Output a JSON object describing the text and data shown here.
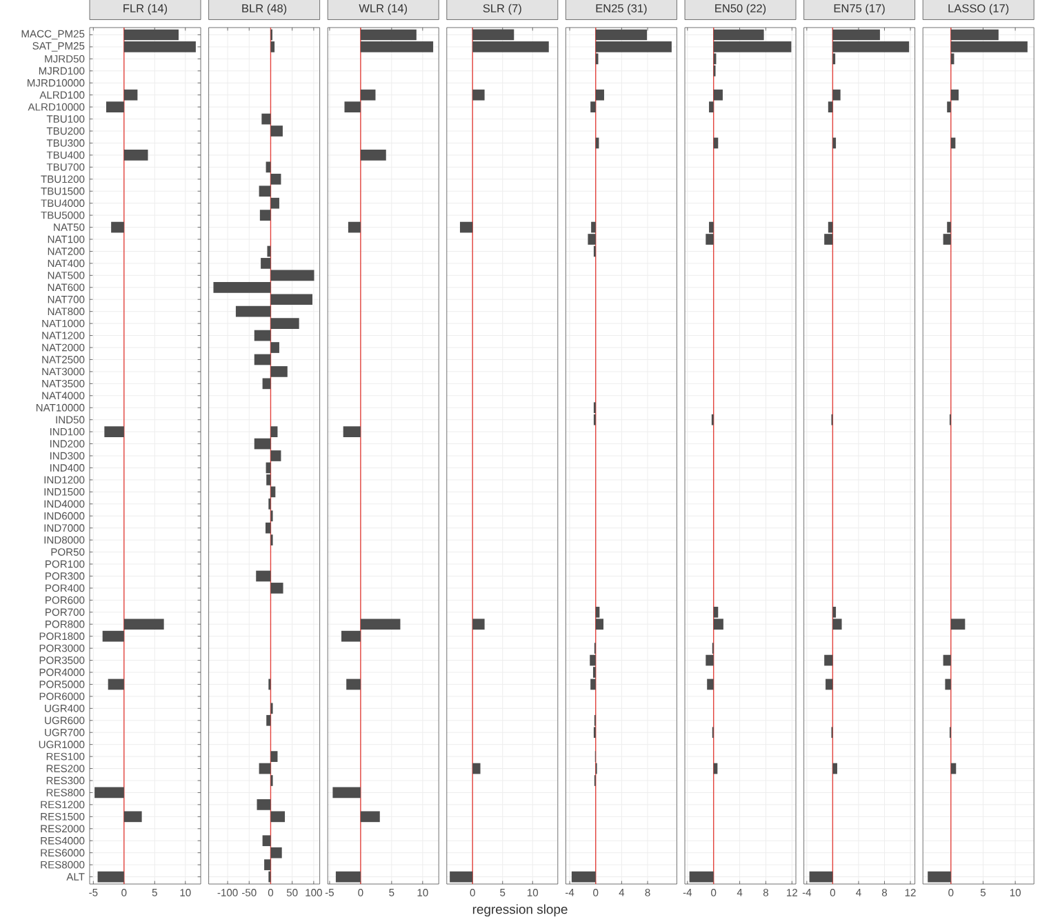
{
  "chart_data": [
    {
      "type": "bar",
      "orientation": "horizontal",
      "title": "FLR (14)",
      "color": "#4d4d4d",
      "grid": true,
      "xlim": [
        -5.6,
        12.5
      ],
      "xticks": [
        -5,
        0,
        5,
        10
      ],
      "ref_lines": [
        {
          "axis": "x",
          "value": 0,
          "color": "#e3423c"
        }
      ],
      "categories": [
        "MACC_PM25",
        "SAT_PM25",
        "MJRD50",
        "MJRD100",
        "MJRD10000",
        "ALRD100",
        "ALRD10000",
        "TBU100",
        "TBU200",
        "TBU300",
        "TBU400",
        "TBU700",
        "TBU1200",
        "TBU1500",
        "TBU4000",
        "TBU5000",
        "NAT50",
        "NAT100",
        "NAT200",
        "NAT400",
        "NAT500",
        "NAT600",
        "NAT700",
        "NAT800",
        "NAT1000",
        "NAT1200",
        "NAT2000",
        "NAT2500",
        "NAT3000",
        "NAT3500",
        "NAT4000",
        "NAT10000",
        "IND50",
        "IND100",
        "IND200",
        "IND300",
        "IND400",
        "IND1200",
        "IND1500",
        "IND4000",
        "IND6000",
        "IND7000",
        "IND8000",
        "POR50",
        "POR100",
        "POR300",
        "POR400",
        "POR600",
        "POR700",
        "POR800",
        "POR1800",
        "POR3000",
        "POR3500",
        "POR4000",
        "POR5000",
        "POR6000",
        "UGR400",
        "UGR600",
        "UGR700",
        "UGR1000",
        "RES100",
        "RES200",
        "RES300",
        "RES800",
        "RES1200",
        "RES1500",
        "RES2000",
        "RES4000",
        "RES6000",
        "RES8000",
        "ALT"
      ],
      "values": [
        8.9,
        11.7,
        null,
        null,
        null,
        2.2,
        -2.9,
        null,
        null,
        null,
        3.9,
        null,
        null,
        null,
        null,
        null,
        -2.1,
        null,
        null,
        null,
        null,
        null,
        null,
        null,
        null,
        null,
        null,
        null,
        null,
        null,
        null,
        null,
        null,
        -3.2,
        null,
        null,
        null,
        null,
        null,
        null,
        null,
        null,
        null,
        null,
        null,
        null,
        null,
        null,
        null,
        6.5,
        -3.5,
        null,
        null,
        null,
        -2.6,
        null,
        null,
        null,
        null,
        null,
        null,
        null,
        null,
        -4.8,
        null,
        2.9,
        null,
        null,
        null,
        null,
        -4.3
      ]
    },
    {
      "type": "bar",
      "orientation": "horizontal",
      "title": "BLR (48)",
      "color": "#4d4d4d",
      "grid": true,
      "tick_labels": "x",
      "xlim": [
        -144,
        114
      ],
      "xticks": [
        -100,
        -50,
        0,
        50,
        100
      ],
      "ref_lines": [
        {
          "axis": "x",
          "value": 0,
          "color": "#e3423c"
        }
      ],
      "values": [
        4,
        9,
        null,
        null,
        null,
        null,
        null,
        -21,
        28,
        null,
        null,
        -11,
        24,
        -27,
        20,
        -25,
        null,
        null,
        -8,
        -23,
        101,
        -133,
        97,
        -81,
        66,
        -38,
        20,
        -38,
        39,
        -19,
        null,
        null,
        null,
        16,
        -38,
        24,
        -11,
        -10,
        11,
        -5,
        5,
        -12,
        5,
        null,
        null,
        -34,
        29,
        null,
        null,
        null,
        null,
        null,
        null,
        null,
        -5,
        null,
        5,
        -10,
        null,
        null,
        16,
        -27,
        5,
        null,
        -32,
        33,
        null,
        -19,
        26,
        -15,
        -5
      ]
    },
    {
      "type": "bar",
      "orientation": "horizontal",
      "title": "WLR (14)",
      "color": "#4d4d4d",
      "grid": true,
      "tick_labels": "x",
      "xlim": [
        -5.3,
        12.6
      ],
      "xticks": [
        -5,
        0,
        5,
        10
      ],
      "ref_lines": [
        {
          "axis": "x",
          "value": 0,
          "color": "#e3423c"
        }
      ],
      "values": [
        9.0,
        11.7,
        null,
        null,
        null,
        2.4,
        -2.6,
        null,
        null,
        null,
        4.1,
        null,
        null,
        null,
        null,
        null,
        -2.0,
        null,
        null,
        null,
        null,
        null,
        null,
        null,
        null,
        null,
        null,
        null,
        null,
        null,
        null,
        null,
        null,
        -2.8,
        null,
        null,
        null,
        null,
        null,
        null,
        null,
        null,
        null,
        null,
        null,
        null,
        null,
        null,
        null,
        6.4,
        -3.1,
        null,
        null,
        null,
        -2.3,
        null,
        null,
        null,
        null,
        null,
        null,
        null,
        null,
        -4.5,
        null,
        3.1,
        null,
        null,
        null,
        null,
        -4.0
      ]
    },
    {
      "type": "bar",
      "orientation": "horizontal",
      "title": "SLR (7)",
      "xlabel": "regression slope",
      "color": "#4d4d4d",
      "grid": true,
      "tick_labels": "x",
      "xlim": [
        -4.3,
        14.2
      ],
      "xticks": [
        0,
        5,
        10
      ],
      "ref_lines": [
        {
          "axis": "x",
          "value": 0,
          "color": "#e3423c"
        }
      ],
      "values": [
        6.9,
        12.7,
        null,
        null,
        null,
        2.0,
        null,
        null,
        null,
        null,
        null,
        null,
        null,
        null,
        null,
        null,
        -2.1,
        null,
        null,
        null,
        null,
        null,
        null,
        null,
        null,
        null,
        null,
        null,
        null,
        null,
        null,
        null,
        null,
        null,
        null,
        null,
        null,
        null,
        null,
        null,
        null,
        null,
        null,
        null,
        null,
        null,
        null,
        null,
        null,
        2.0,
        null,
        null,
        null,
        null,
        null,
        null,
        null,
        null,
        null,
        null,
        null,
        1.3,
        null,
        null,
        null,
        null,
        null,
        null,
        null,
        null,
        -3.8
      ]
    },
    {
      "type": "bar",
      "orientation": "horizontal",
      "title": "EN25 (31)",
      "color": "#4d4d4d",
      "grid": true,
      "tick_labels": "x",
      "xlim": [
        -4.6,
        12.5
      ],
      "xticks": [
        -4,
        0,
        4,
        8
      ],
      "ref_lines": [
        {
          "axis": "x",
          "value": 0,
          "color": "#e3423c"
        }
      ],
      "values": [
        7.9,
        11.7,
        0.4,
        null,
        null,
        1.3,
        -0.8,
        null,
        null,
        0.5,
        null,
        null,
        null,
        null,
        null,
        null,
        -0.7,
        -1.2,
        -0.3,
        null,
        null,
        null,
        null,
        null,
        null,
        null,
        null,
        null,
        null,
        null,
        null,
        -0.3,
        -0.3,
        null,
        null,
        null,
        null,
        null,
        null,
        null,
        null,
        null,
        null,
        null,
        null,
        null,
        null,
        null,
        0.6,
        1.2,
        null,
        -0.2,
        -0.9,
        -0.4,
        -0.8,
        null,
        null,
        -0.2,
        -0.3,
        null,
        -0.1,
        0.2,
        -0.2,
        null,
        null,
        null,
        null,
        null,
        null,
        null,
        -3.7
      ]
    },
    {
      "type": "bar",
      "orientation": "horizontal",
      "title": "EN50 (22)",
      "color": "#4d4d4d",
      "grid": true,
      "tick_labels": "x",
      "xlim": [
        -4.4,
        12.6
      ],
      "xticks": [
        -4,
        0,
        4,
        8,
        12
      ],
      "ref_lines": [
        {
          "axis": "x",
          "value": 0,
          "color": "#e3423c"
        }
      ],
      "values": [
        7.7,
        11.9,
        0.4,
        0.3,
        null,
        1.4,
        -0.7,
        null,
        null,
        0.7,
        null,
        null,
        null,
        null,
        null,
        null,
        -0.7,
        -1.2,
        null,
        null,
        null,
        null,
        null,
        null,
        null,
        null,
        null,
        null,
        null,
        null,
        null,
        null,
        -0.3,
        null,
        null,
        null,
        null,
        null,
        null,
        null,
        null,
        null,
        null,
        null,
        null,
        null,
        null,
        null,
        0.7,
        1.5,
        null,
        -0.2,
        -1.2,
        null,
        -1.0,
        null,
        null,
        null,
        -0.2,
        null,
        null,
        0.6,
        null,
        null,
        null,
        null,
        null,
        null,
        null,
        null,
        -3.7
      ]
    },
    {
      "type": "bar",
      "orientation": "horizontal",
      "title": "EN75 (17)",
      "color": "#4d4d4d",
      "grid": true,
      "tick_labels": "x",
      "xlim": [
        -4.45,
        12.7
      ],
      "xticks": [
        -4,
        0,
        4,
        8,
        12
      ],
      "ref_lines": [
        {
          "axis": "x",
          "value": 0,
          "color": "#e3423c"
        }
      ],
      "values": [
        7.3,
        11.8,
        0.4,
        null,
        null,
        1.2,
        -0.7,
        null,
        null,
        0.5,
        null,
        null,
        null,
        null,
        null,
        null,
        -0.7,
        -1.3,
        null,
        null,
        null,
        null,
        null,
        null,
        null,
        null,
        null,
        null,
        null,
        null,
        null,
        null,
        -0.2,
        null,
        null,
        null,
        null,
        null,
        null,
        null,
        null,
        null,
        null,
        null,
        null,
        null,
        null,
        null,
        0.5,
        1.4,
        null,
        null,
        -1.3,
        null,
        -1.1,
        null,
        null,
        null,
        -0.2,
        null,
        null,
        0.7,
        null,
        null,
        null,
        null,
        null,
        null,
        null,
        null,
        -3.6
      ]
    },
    {
      "type": "bar",
      "orientation": "horizontal",
      "title": "LASSO (17)",
      "color": "#4d4d4d",
      "grid": true,
      "tick_labels": "x",
      "xlim": [
        -4.35,
        12.9
      ],
      "xticks": [
        0,
        5,
        10
      ],
      "ref_lines": [
        {
          "axis": "x",
          "value": 0,
          "color": "#e3423c"
        }
      ],
      "values": [
        7.4,
        11.9,
        0.5,
        null,
        null,
        1.2,
        -0.6,
        null,
        null,
        0.7,
        null,
        null,
        null,
        null,
        null,
        null,
        -0.6,
        -1.2,
        null,
        null,
        null,
        null,
        null,
        null,
        null,
        null,
        null,
        null,
        null,
        null,
        null,
        null,
        -0.2,
        null,
        null,
        null,
        null,
        null,
        null,
        null,
        null,
        null,
        null,
        null,
        null,
        null,
        null,
        null,
        null,
        2.2,
        null,
        null,
        -1.2,
        null,
        -0.9,
        null,
        null,
        null,
        -0.2,
        null,
        null,
        0.8,
        null,
        null,
        null,
        null,
        null,
        null,
        null,
        null,
        -3.6
      ]
    }
  ]
}
